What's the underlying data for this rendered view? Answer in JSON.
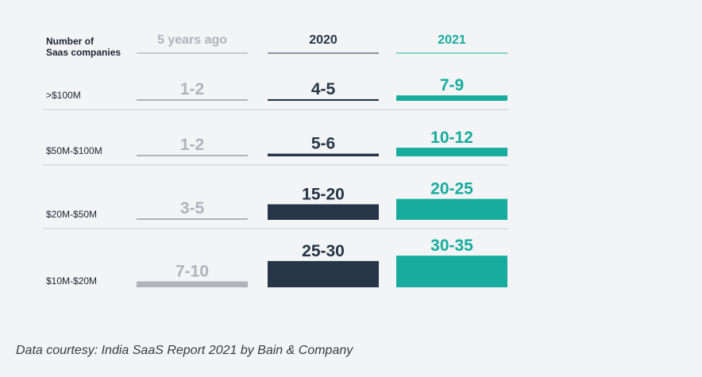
{
  "chart_data": {
    "type": "table",
    "row_header": "Number of Saas companies",
    "columns": [
      "5 years ago",
      "2020",
      "2021"
    ],
    "rows": [
      {
        "label": ">$100M",
        "values": [
          "1-2",
          "4-5",
          "7-9"
        ]
      },
      {
        "label": "$50M-$100M",
        "values": [
          "1-2",
          "5-6",
          "10-12"
        ]
      },
      {
        "label": "$20M-$50M",
        "values": [
          "3-5",
          "15-20",
          "20-25"
        ]
      },
      {
        "label": "$10M-$20M",
        "values": [
          "7-10",
          "25-30",
          "30-35"
        ]
      }
    ],
    "colors": {
      "5 years ago": "#b0b3ba",
      "2020": "#263646",
      "2021": "#17ac9e"
    }
  },
  "caption": "Data courtesy: India SaaS Report 2021 by Bain & Company"
}
